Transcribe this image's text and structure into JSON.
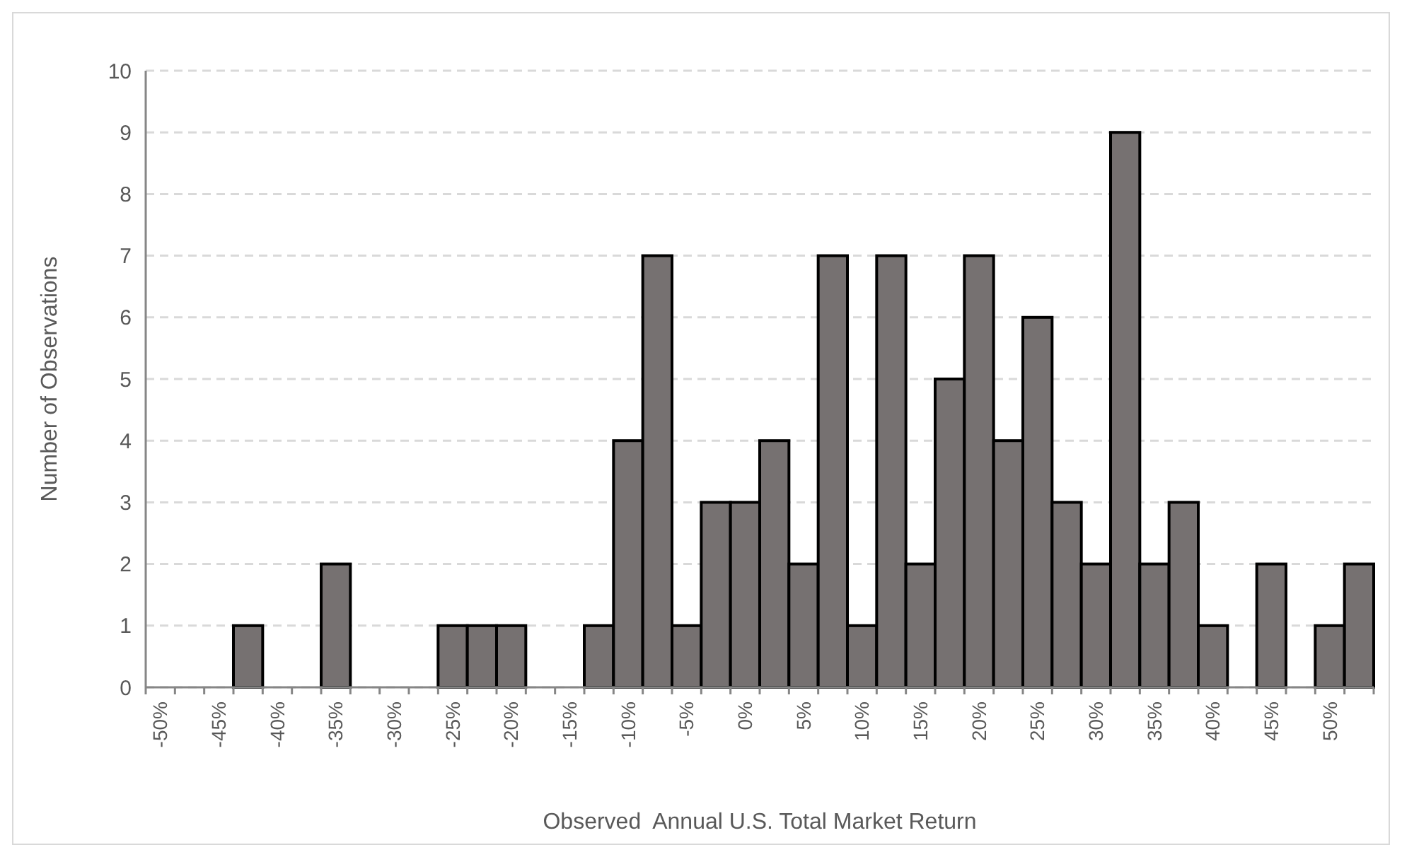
{
  "chart_data": {
    "type": "bar",
    "xlabel": "Observed  Annual U.S. Total Market Return",
    "ylabel": "Number of Observations",
    "categories": [
      "-50%",
      null,
      "-45%",
      null,
      "-40%",
      null,
      "-35%",
      null,
      "-30%",
      null,
      "-25%",
      null,
      "-20%",
      null,
      "-15%",
      null,
      "-10%",
      null,
      "-5%",
      null,
      "0%",
      null,
      "5%",
      null,
      "10%",
      null,
      "15%",
      null,
      "20%",
      null,
      "25%",
      null,
      "30%",
      null,
      "35%",
      null,
      "40%",
      null,
      "45%",
      null,
      "50%",
      null
    ],
    "values": [
      0,
      0,
      0,
      1,
      0,
      0,
      2,
      0,
      0,
      0,
      1,
      1,
      1,
      0,
      0,
      1,
      4,
      7,
      1,
      3,
      3,
      4,
      2,
      7,
      1,
      7,
      2,
      5,
      7,
      4,
      6,
      3,
      2,
      9,
      2,
      3,
      1,
      0,
      2,
      0,
      1,
      2
    ],
    "color": "#767171",
    "ylim": [
      0,
      10
    ],
    "yticks": [
      0,
      1,
      2,
      3,
      4,
      5,
      6,
      7,
      8,
      9,
      10
    ],
    "grid": "y"
  }
}
